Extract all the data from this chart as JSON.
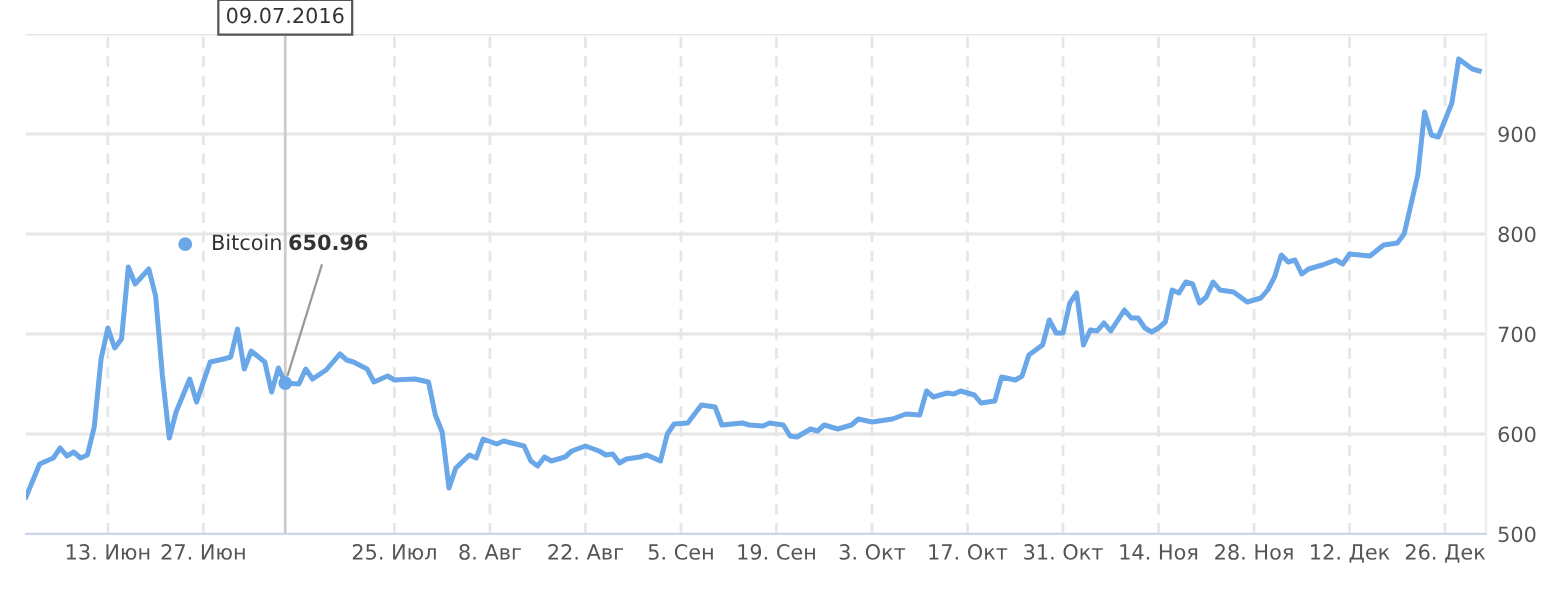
{
  "chart_data": {
    "type": "line",
    "series": [
      {
        "name": "Bitcoin",
        "color": "#6aa7e8",
        "x": [
          "2016-06-01",
          "2016-06-03",
          "2016-06-05",
          "2016-06-06",
          "2016-06-07",
          "2016-06-08",
          "2016-06-09",
          "2016-06-10",
          "2016-06-11",
          "2016-06-12",
          "2016-06-13",
          "2016-06-14",
          "2016-06-15",
          "2016-06-16",
          "2016-06-17",
          "2016-06-19",
          "2016-06-20",
          "2016-06-21",
          "2016-06-22",
          "2016-06-23",
          "2016-06-25",
          "2016-06-26",
          "2016-06-28",
          "2016-06-30",
          "2016-07-01",
          "2016-07-02",
          "2016-07-03",
          "2016-07-04",
          "2016-07-06",
          "2016-07-07",
          "2016-07-08",
          "2016-07-09",
          "2016-07-11",
          "2016-07-12",
          "2016-07-13",
          "2016-07-15",
          "2016-07-17",
          "2016-07-18",
          "2016-07-19",
          "2016-07-21",
          "2016-07-22",
          "2016-07-24",
          "2016-07-25",
          "2016-07-28",
          "2016-07-30",
          "2016-07-31",
          "2016-08-01",
          "2016-08-02",
          "2016-08-03",
          "2016-08-05",
          "2016-08-06",
          "2016-08-07",
          "2016-08-09",
          "2016-08-10",
          "2016-08-13",
          "2016-08-14",
          "2016-08-15",
          "2016-08-16",
          "2016-08-17",
          "2016-08-19",
          "2016-08-20",
          "2016-08-22",
          "2016-08-24",
          "2016-08-25",
          "2016-08-26",
          "2016-08-27",
          "2016-08-28",
          "2016-08-30",
          "2016-08-31",
          "2016-09-02",
          "2016-09-03",
          "2016-09-04",
          "2016-09-06",
          "2016-09-07",
          "2016-09-08",
          "2016-09-10",
          "2016-09-11",
          "2016-09-14",
          "2016-09-15",
          "2016-09-17",
          "2016-09-18",
          "2016-09-20",
          "2016-09-21",
          "2016-09-22",
          "2016-09-24",
          "2016-09-25",
          "2016-09-26",
          "2016-09-28",
          "2016-09-30",
          "2016-10-01",
          "2016-10-03",
          "2016-10-06",
          "2016-10-08",
          "2016-10-10",
          "2016-10-11",
          "2016-10-12",
          "2016-10-14",
          "2016-10-15",
          "2016-10-16",
          "2016-10-18",
          "2016-10-19",
          "2016-10-21",
          "2016-10-22",
          "2016-10-24",
          "2016-10-25",
          "2016-10-26",
          "2016-10-28",
          "2016-10-29",
          "2016-10-30",
          "2016-10-31",
          "2016-11-01",
          "2016-11-02",
          "2016-11-03",
          "2016-11-04",
          "2016-11-05",
          "2016-11-06",
          "2016-11-07",
          "2016-11-09",
          "2016-11-10",
          "2016-11-11",
          "2016-11-12",
          "2016-11-13",
          "2016-11-14",
          "2016-11-15",
          "2016-11-16",
          "2016-11-17",
          "2016-11-18",
          "2016-11-19",
          "2016-11-20",
          "2016-11-21",
          "2016-11-22",
          "2016-11-23",
          "2016-11-25",
          "2016-11-27",
          "2016-11-29",
          "2016-11-30",
          "2016-12-01",
          "2016-12-02",
          "2016-12-03",
          "2016-12-04",
          "2016-12-05",
          "2016-12-06",
          "2016-12-08",
          "2016-12-10",
          "2016-12-11",
          "2016-12-12",
          "2016-12-15",
          "2016-12-17",
          "2016-12-19",
          "2016-12-20",
          "2016-12-22",
          "2016-12-23",
          "2016-12-24",
          "2016-12-25",
          "2016-12-27",
          "2016-12-28",
          "2016-12-30",
          "2016-12-31"
        ],
        "values": [
          537,
          570,
          576,
          586,
          578,
          582,
          576,
          579,
          607,
          675,
          706,
          686,
          695,
          767,
          750,
          765,
          738,
          658,
          596,
          622,
          655,
          632,
          672,
          675,
          677,
          705,
          665,
          683,
          672,
          642,
          666,
          650.96,
          650,
          665,
          655,
          664,
          680,
          674,
          672,
          665,
          652,
          658,
          654,
          655,
          652,
          619,
          602,
          546,
          566,
          579,
          576,
          595,
          590,
          593,
          588,
          573,
          568,
          577,
          573,
          577,
          583,
          588,
          583,
          579,
          580,
          571,
          575,
          577,
          579,
          573,
          600,
          610,
          611,
          620,
          629,
          627,
          609,
          611,
          609,
          608,
          611,
          609,
          598,
          597,
          605,
          603,
          609,
          605,
          609,
          615,
          612,
          615,
          620,
          619,
          643,
          637,
          641,
          640,
          643,
          639,
          631,
          633,
          657,
          654,
          658,
          679,
          689,
          714,
          701,
          701,
          731,
          741,
          689,
          704,
          703,
          711,
          703,
          724,
          716,
          716,
          706,
          702,
          706,
          712,
          744,
          741,
          752,
          750,
          731,
          737,
          752,
          744,
          742,
          732,
          736,
          744,
          757,
          779,
          772,
          774,
          760,
          765,
          769,
          774,
          770,
          780,
          778,
          789,
          791,
          800,
          859,
          922,
          899,
          897,
          931,
          975,
          965,
          963
        ]
      }
    ],
    "xlim": [
      "2016-06-01",
      "2017-01-01"
    ],
    "xticks": [
      {
        "value": "2016-06-13",
        "label": "13. Июн"
      },
      {
        "value": "2016-06-27",
        "label": "27. Июн"
      },
      {
        "value": "2016-07-25",
        "label": "25. Июл"
      },
      {
        "value": "2016-08-08",
        "label": "8. Авг"
      },
      {
        "value": "2016-08-22",
        "label": "22. Авг"
      },
      {
        "value": "2016-09-05",
        "label": "5. Сен"
      },
      {
        "value": "2016-09-19",
        "label": "19. Сен"
      },
      {
        "value": "2016-10-03",
        "label": "3. Окт"
      },
      {
        "value": "2016-10-17",
        "label": "17. Окт"
      },
      {
        "value": "2016-10-31",
        "label": "31. Окт"
      },
      {
        "value": "2016-11-14",
        "label": "14. Ноя"
      },
      {
        "value": "2016-11-28",
        "label": "28. Ноя"
      },
      {
        "value": "2016-12-12",
        "label": "12. Дек"
      },
      {
        "value": "2016-12-26",
        "label": "26. Дек"
      }
    ],
    "ylim": [
      500,
      1000
    ],
    "yticks": [
      500,
      600,
      700,
      800,
      900,
      {
        "value": 1000,
        "label": null
      }
    ],
    "grid": true,
    "ref_lines": [
      {
        "axis": "x",
        "value": "2016-07-09",
        "label": "09.07.2016",
        "color": "#cccccc"
      }
    ],
    "annotations": [
      {
        "text": "650.96",
        "x": "2016-07-09",
        "y": 650.96
      }
    ]
  }
}
